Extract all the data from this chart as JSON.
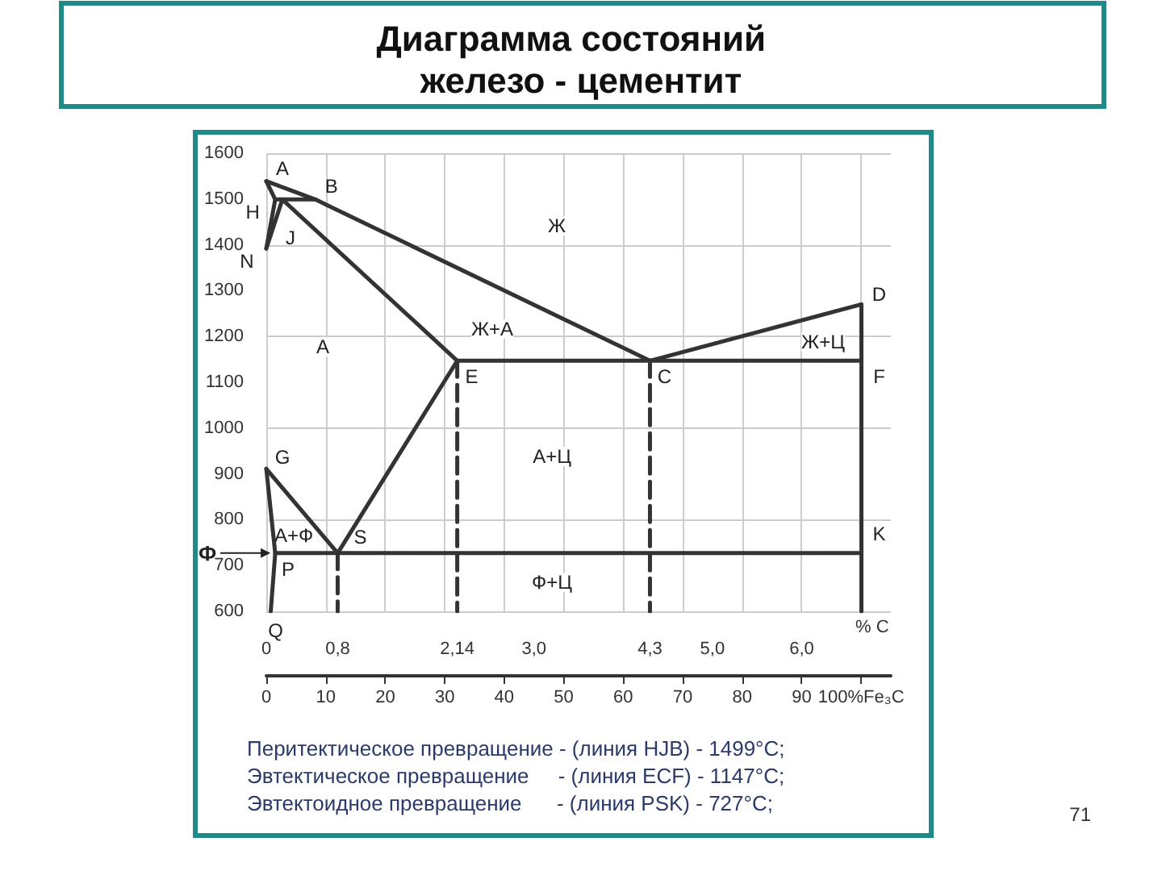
{
  "chart_data": {
    "type": "line",
    "title": "Диаграмма состояний  железо - цементит",
    "xlabel": "% C",
    "xlim": [
      0,
      7
    ],
    "xticks": [
      0,
      {
        "value": 0.8,
        "label": "0,8"
      },
      {
        "value": 2.14,
        "label": "2,14"
      },
      {
        "value": 3.0,
        "label": "3,0"
      },
      {
        "value": 4.3,
        "label": "4,3"
      },
      {
        "value": 5.0,
        "label": "5,0"
      },
      {
        "value": 6.0,
        "label": "6,0"
      }
    ],
    "x2lim": [
      0,
      105
    ],
    "x2ticks": [
      0,
      10,
      20,
      30,
      40,
      50,
      60,
      70,
      80,
      90,
      {
        "value": 100,
        "label": "100%Fe₃C"
      }
    ],
    "ylim": [
      600,
      1600
    ],
    "yticks": [
      600,
      700,
      800,
      900,
      1000,
      1100,
      1200,
      1300,
      1400,
      1500,
      1600
    ],
    "grid": true,
    "series": [
      {
        "color": "#333333",
        "x": [
          0,
          0.55,
          4.3,
          6.67
        ],
        "values": [
          1539,
          1499,
          1147,
          1270
        ]
      },
      {
        "color": "#333333",
        "x": [
          0,
          0.1,
          0
        ],
        "values": [
          1539,
          1499,
          1392
        ]
      },
      {
        "color": "#333333",
        "x": [
          0.1,
          0.18,
          0.55
        ],
        "values": [
          1499,
          1499,
          1499
        ]
      },
      {
        "color": "#333333",
        "x": [
          0.18,
          2.14
        ],
        "values": [
          1499,
          1147
        ]
      },
      {
        "color": "#333333",
        "x": [
          0,
          0.18
        ],
        "values": [
          1392,
          1499
        ]
      },
      {
        "color": "#333333",
        "x": [
          2.14,
          4.3,
          6.67
        ],
        "values": [
          1147,
          1147,
          1147
        ]
      },
      {
        "color": "#333333",
        "x": [
          6.67,
          6.67,
          6.67,
          6.67
        ],
        "values": [
          1270,
          1147,
          727,
          600
        ]
      },
      {
        "color": "#333333",
        "x": [
          0,
          0.8
        ],
        "values": [
          911,
          727
        ]
      },
      {
        "color": "#333333",
        "x": [
          0,
          0.1,
          0.05
        ],
        "values": [
          911,
          727,
          600
        ]
      },
      {
        "color": "#333333",
        "x": [
          2.14,
          0.8
        ],
        "values": [
          1147,
          727
        ]
      },
      {
        "color": "#333333",
        "x": [
          0.1,
          0.8,
          6.67
        ],
        "values": [
          727,
          727,
          727
        ]
      },
      {
        "color": "#333333",
        "line_style": "dashed",
        "x": [
          0.8,
          0.8
        ],
        "values": [
          727,
          600
        ]
      },
      {
        "color": "#333333",
        "line_style": "dashed",
        "x": [
          2.14,
          2.14
        ],
        "values": [
          1147,
          600
        ]
      },
      {
        "color": "#333333",
        "line_style": "dashed",
        "x": [
          4.3,
          4.3
        ],
        "values": [
          1147,
          600
        ]
      }
    ],
    "annotations": [
      {
        "text": "A",
        "x": 0,
        "y": 1539
      },
      {
        "text": "B",
        "x": 0.55,
        "y": 1499
      },
      {
        "text": "H",
        "x": 0.1,
        "y": 1499
      },
      {
        "text": "J",
        "x": 0.18,
        "y": 1499
      },
      {
        "text": "N",
        "x": 0,
        "y": 1392
      },
      {
        "text": "E",
        "x": 2.14,
        "y": 1147
      },
      {
        "text": "C",
        "x": 4.3,
        "y": 1147
      },
      {
        "text": "D",
        "x": 6.67,
        "y": 1270
      },
      {
        "text": "F",
        "x": 6.67,
        "y": 1147
      },
      {
        "text": "G",
        "x": 0,
        "y": 911
      },
      {
        "text": "S",
        "x": 0.8,
        "y": 727
      },
      {
        "text": "K",
        "x": 6.67,
        "y": 727
      },
      {
        "text": "P",
        "x": 0.1,
        "y": 727
      },
      {
        "text": "Q",
        "x": 0.05,
        "y": 600
      },
      {
        "text": "Ф",
        "x": 0.1,
        "y": 727
      },
      "Ж",
      "Ж+А",
      "А",
      "А+Ц",
      "Ж+Ц",
      "А+Ф",
      "Ф+Ц",
      "Перитектическое превращение - (линия HJB) - 1499°C;",
      "Эвтектическое превращение     - (линия ECF) - 1147°C;",
      "Эвтектоидное превращение      - (линия PSK) - 727°C;",
      "71"
    ]
  }
}
